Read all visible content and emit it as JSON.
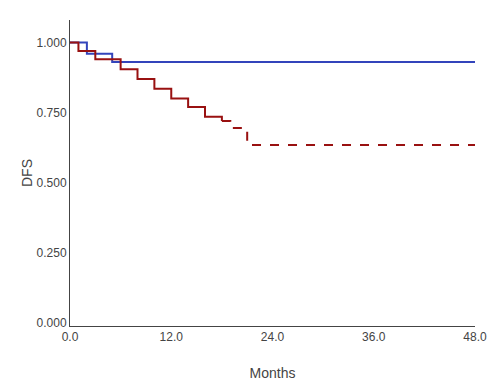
{
  "chart_data": {
    "type": "line",
    "xlabel": "Months",
    "ylabel": "DFS",
    "xlim": [
      0,
      48
    ],
    "ylim": [
      -0.01,
      1.08
    ],
    "xticks": [
      {
        "value": 0.0,
        "label": "0.0"
      },
      {
        "value": 12.0,
        "label": "12.0"
      },
      {
        "value": 24.0,
        "label": "24.0"
      },
      {
        "value": 36.0,
        "label": "36.0"
      },
      {
        "value": 48.0,
        "label": "48.0"
      }
    ],
    "yticks": [
      {
        "value": 0.0,
        "label": "0.000"
      },
      {
        "value": 0.25,
        "label": "0.250"
      },
      {
        "value": 0.5,
        "label": "0.500"
      },
      {
        "value": 0.75,
        "label": "0.750"
      },
      {
        "value": 1.0,
        "label": "1.000"
      }
    ],
    "grid": false,
    "series": [
      {
        "color": "#3344bb",
        "line_style": "solid",
        "x": [
          0,
          2,
          2,
          5,
          5,
          48
        ],
        "values": [
          1.0,
          1.0,
          0.96,
          0.96,
          0.93,
          0.93
        ]
      },
      {
        "color": "#991111",
        "line_style": "solid",
        "x": [
          0,
          1,
          1,
          3,
          3,
          6,
          6,
          8,
          8,
          10,
          10,
          12,
          12,
          14,
          14,
          16,
          16,
          18,
          18
        ],
        "values": [
          1.0,
          1.0,
          0.97,
          0.97,
          0.94,
          0.94,
          0.905,
          0.905,
          0.87,
          0.87,
          0.835,
          0.835,
          0.8,
          0.8,
          0.77,
          0.77,
          0.735,
          0.735,
          0.72
        ]
      },
      {
        "color": "#991111",
        "line_style": "dashed",
        "x": [
          18,
          19,
          19,
          21,
          21,
          48
        ],
        "values": [
          0.72,
          0.72,
          0.695,
          0.695,
          0.635,
          0.635
        ]
      }
    ]
  }
}
